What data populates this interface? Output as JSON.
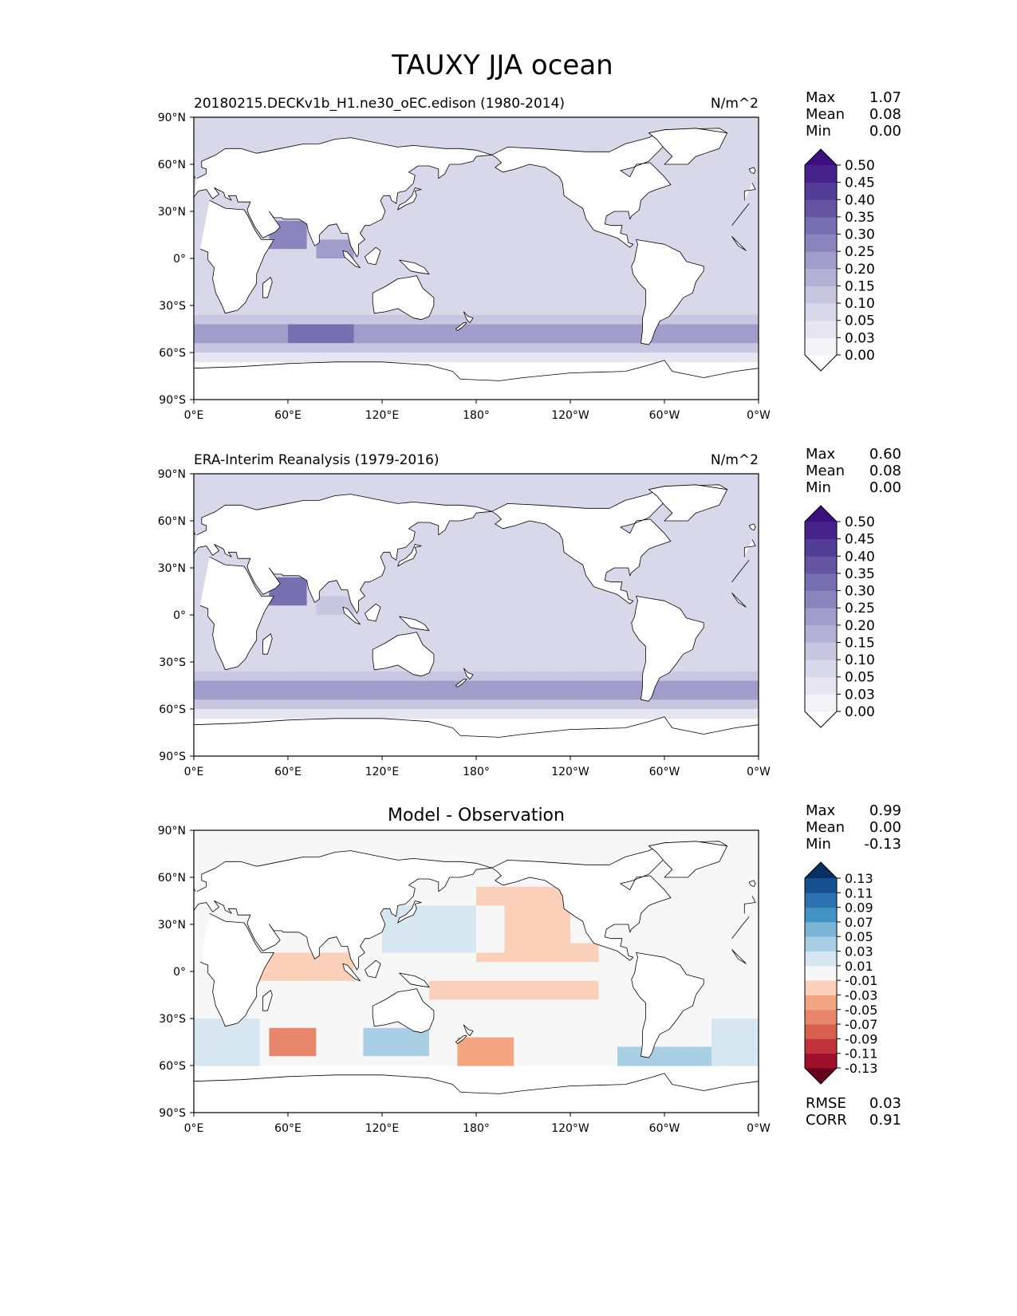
{
  "figure": {
    "title": "TAUXY JJA ocean"
  },
  "chart_data": [
    {
      "type": "heatmap",
      "title": "20180215.DECKv1b_H1.ne30_oEC.edison (1980-2014)",
      "units": "N/m^2",
      "x_ticks": [
        "0°E",
        "60°E",
        "120°E",
        "180°",
        "120°W",
        "60°W",
        "0°W"
      ],
      "y_ticks": [
        "90°N",
        "60°N",
        "30°N",
        "0°",
        "30°S",
        "60°S",
        "90°S"
      ],
      "xlim": [
        0,
        360
      ],
      "ylim": [
        -90,
        90
      ],
      "stats": [
        {
          "label": "Max",
          "value": "1.07"
        },
        {
          "label": "Mean",
          "value": "0.08"
        },
        {
          "label": "Min",
          "value": "0.00"
        }
      ],
      "colorbar": {
        "extend": "both",
        "levels": [
          "0.00",
          "0.03",
          "0.05",
          "0.10",
          "0.15",
          "0.20",
          "0.25",
          "0.30",
          "0.35",
          "0.40",
          "0.45",
          "0.50"
        ],
        "colors": [
          "#ffffff",
          "#f4f3f8",
          "#e6e5f1",
          "#d9d8ea",
          "#c8c6e1",
          "#b4b1d6",
          "#a09dcb",
          "#8a85bd",
          "#7670b0",
          "#6455a3",
          "#533d96",
          "#45238a",
          "#3c0f7e"
        ]
      }
    },
    {
      "type": "heatmap",
      "title": "ERA-Interim Reanalysis (1979-2016)",
      "units": "N/m^2",
      "x_ticks": [
        "0°E",
        "60°E",
        "120°E",
        "180°",
        "120°W",
        "60°W",
        "0°W"
      ],
      "y_ticks": [
        "90°N",
        "60°N",
        "30°N",
        "0°",
        "30°S",
        "60°S",
        "90°S"
      ],
      "xlim": [
        0,
        360
      ],
      "ylim": [
        -90,
        90
      ],
      "stats": [
        {
          "label": "Max",
          "value": "0.60"
        },
        {
          "label": "Mean",
          "value": "0.08"
        },
        {
          "label": "Min",
          "value": "0.00"
        }
      ],
      "colorbar": {
        "extend": "both",
        "levels": [
          "0.00",
          "0.03",
          "0.05",
          "0.10",
          "0.15",
          "0.20",
          "0.25",
          "0.30",
          "0.35",
          "0.40",
          "0.45",
          "0.50"
        ],
        "colors": [
          "#ffffff",
          "#f4f3f8",
          "#e6e5f1",
          "#d9d8ea",
          "#c8c6e1",
          "#b4b1d6",
          "#a09dcb",
          "#8a85bd",
          "#7670b0",
          "#6455a3",
          "#533d96",
          "#45238a",
          "#3c0f7e"
        ]
      }
    },
    {
      "type": "heatmap",
      "title": "Model - Observation",
      "units": "",
      "x_ticks": [
        "0°E",
        "60°E",
        "120°E",
        "180°",
        "120°W",
        "60°W",
        "0°W"
      ],
      "y_ticks": [
        "90°N",
        "60°N",
        "30°N",
        "0°",
        "30°S",
        "60°S",
        "90°S"
      ],
      "xlim": [
        0,
        360
      ],
      "ylim": [
        -90,
        90
      ],
      "stats": [
        {
          "label": "Max",
          "value": "0.99"
        },
        {
          "label": "Mean",
          "value": "0.00"
        },
        {
          "label": "Min",
          "value": "-0.13"
        }
      ],
      "metrics": [
        {
          "label": "RMSE",
          "value": "0.03"
        },
        {
          "label": "CORR",
          "value": "0.91"
        }
      ],
      "colorbar": {
        "extend": "both",
        "levels": [
          "-0.13",
          "-0.11",
          "-0.09",
          "-0.07",
          "-0.05",
          "-0.03",
          "-0.01",
          "0.01",
          "0.03",
          "0.05",
          "0.07",
          "0.09",
          "0.11",
          "0.13"
        ],
        "colors": [
          "#67001f",
          "#9e1028",
          "#c1333a",
          "#d6604d",
          "#e8866c",
          "#f4a582",
          "#fbd0b9",
          "#f7f7f7",
          "#d6e7f1",
          "#a8cfe4",
          "#7ab6d6",
          "#4393c3",
          "#2c72b1",
          "#16508f",
          "#053061"
        ]
      }
    }
  ]
}
